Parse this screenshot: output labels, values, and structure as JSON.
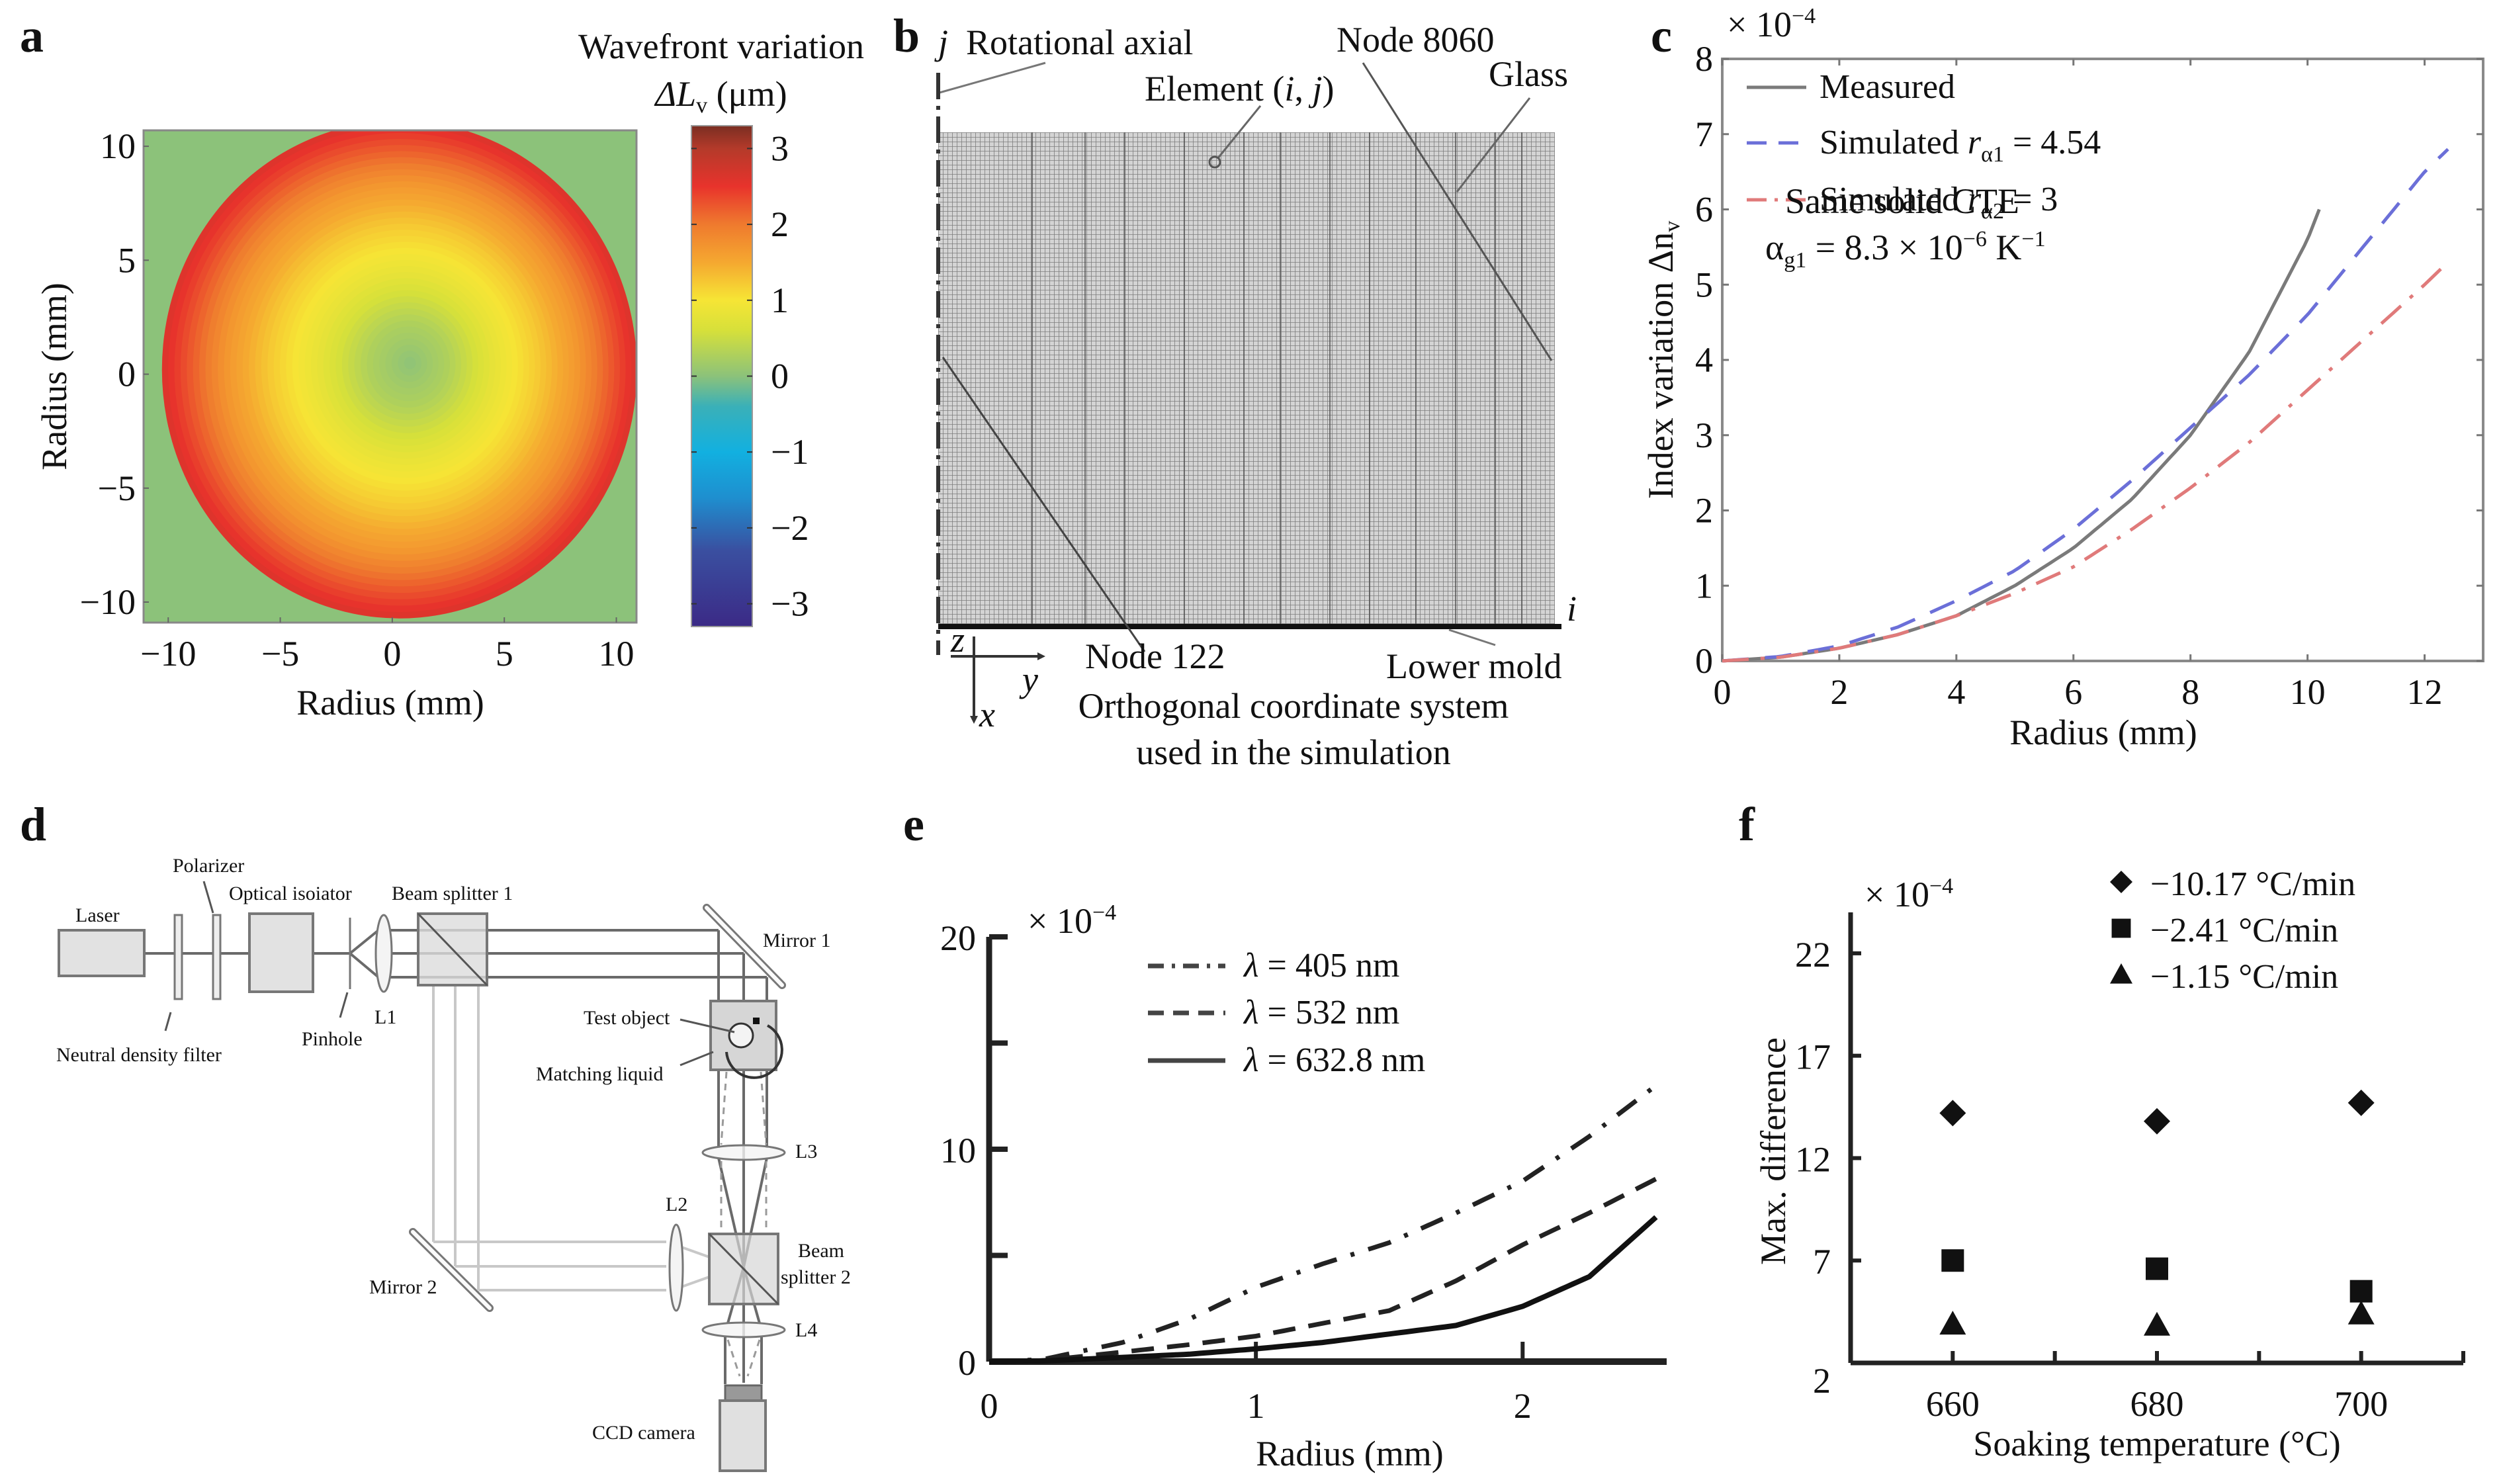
{
  "figure": {
    "panels": {
      "a": {
        "letter": "a",
        "colorbar_title_line1": "Wavefront variation",
        "colorbar_title_symbol": "ΔL",
        "colorbar_title_sub": "v",
        "colorbar_title_unit": " (μm)"
      },
      "b": {
        "letter": "b",
        "j_label": "j",
        "rotational_axial": "Rotational axial",
        "element_label": "Element (",
        "element_i": "i",
        "element_comma": ", ",
        "element_j": "j",
        "element_close": ")",
        "node_8060": "Node 8060",
        "glass": "Glass",
        "i_label": "i",
        "node_122": "Node 122",
        "lower_mold": "Lower mold",
        "coord_z": "z",
        "coord_y": "y",
        "coord_x": "x",
        "caption_line1": "Orthogonal coordinate system",
        "caption_line2": "used in the simulation"
      },
      "c": {
        "letter": "c",
        "multiplier_prefix": "× 10",
        "multiplier_exp": "−4",
        "annotation_line1": "Same solid CTE",
        "annotation_alpha": "α",
        "annotation_alpha_sub": "g1",
        "annotation_eq": " = 8.3 × 10",
        "annotation_exp": "−6",
        "annotation_unit": " K",
        "annotation_unit_exp": "−1"
      },
      "d": {
        "letter": "d",
        "labels": {
          "laser": "Laser",
          "polarizer": "Polarizer",
          "optical_isolator": "Optical isoiator",
          "beam_splitter_1": "Beam splitter 1",
          "mirror_1": "Mirror 1",
          "neutral_density_filter": "Neutral density filter",
          "pinhole": "Pinhole",
          "l1": "L1",
          "test_object": "Test object",
          "matching_liquid": "Matching liquid",
          "l3": "L3",
          "l2": "L2",
          "beam_splitter_2_line1": "Beam",
          "beam_splitter_2_line2": "splitter 2",
          "mirror_2": "Mirror 2",
          "l4": "L4",
          "ccd_camera": "CCD camera"
        }
      },
      "e": {
        "letter": "e",
        "multiplier_prefix": "× 10",
        "multiplier_exp": "−4"
      },
      "f": {
        "letter": "f",
        "multiplier_prefix": "× 10",
        "multiplier_exp": "−4"
      }
    }
  },
  "chart_data": [
    {
      "id": "a",
      "type": "heatmap",
      "title": "",
      "xlabel": "Radius (mm)",
      "ylabel": "Radius (mm)",
      "xlim": [
        -11.1,
        10.9
      ],
      "ylim": [
        -10.9,
        10.7
      ],
      "xticks": [
        -10,
        -5,
        0,
        5,
        10
      ],
      "xtick_labels": [
        "−10",
        "−5",
        "0",
        "5",
        "10"
      ],
      "yticks": [
        -10,
        -5,
        0,
        5,
        10
      ],
      "ytick_labels": [
        "−10",
        "−5",
        "0",
        "5",
        "10"
      ],
      "aperture_radius_mm": 10.6,
      "center_mm": [
        0.8,
        0.5
      ],
      "background_value": 0,
      "radial_profile": {
        "r_mm": [
          0,
          2,
          4,
          6,
          8,
          10,
          10.6
        ],
        "value_um": [
          0.0,
          0.3,
          0.8,
          1.2,
          1.7,
          2.4,
          2.6
        ]
      },
      "colorbar": {
        "label": "Wavefront variation ΔLv (μm)",
        "range": [
          -3.3,
          3.3
        ],
        "ticks": [
          3,
          2,
          1,
          0,
          -1,
          -2,
          -3
        ],
        "tick_labels": [
          "3",
          "2",
          "1",
          "0",
          "−1",
          "−2",
          "−3"
        ],
        "colormap_stops": [
          {
            "v": -3.3,
            "color": "#3b2a86"
          },
          {
            "v": -2.3,
            "color": "#3a4fa0"
          },
          {
            "v": -1.6,
            "color": "#1e8fcf"
          },
          {
            "v": -1.0,
            "color": "#12b0e0"
          },
          {
            "v": -0.4,
            "color": "#3ab0b8"
          },
          {
            "v": 0.0,
            "color": "#8cc27a"
          },
          {
            "v": 0.6,
            "color": "#d6e03a"
          },
          {
            "v": 1.0,
            "color": "#f6e535"
          },
          {
            "v": 1.5,
            "color": "#f5a830"
          },
          {
            "v": 2.0,
            "color": "#ef7a2e"
          },
          {
            "v": 2.5,
            "color": "#e8332c"
          },
          {
            "v": 3.0,
            "color": "#b43a2a"
          },
          {
            "v": 3.3,
            "color": "#7a2e22"
          }
        ]
      }
    },
    {
      "id": "b",
      "type": "diagram",
      "description": "Finite element mesh of glass on lower mold"
    },
    {
      "id": "c",
      "type": "line",
      "title": "",
      "xlabel": "Radius (mm)",
      "ylabel": "Index variation Δn",
      "ylabel_sub": "v",
      "multiplier": "× 10^−4",
      "xlim": [
        0,
        13
      ],
      "ylim": [
        0,
        8
      ],
      "xticks": [
        0,
        2,
        4,
        6,
        8,
        10,
        12
      ],
      "yticks": [
        0,
        1,
        2,
        3,
        4,
        5,
        6,
        7,
        8
      ],
      "grid": false,
      "legend_position": "top-left",
      "series": [
        {
          "name": "Measured",
          "name_parts": [
            "Measured"
          ],
          "color": "#7a7a7a",
          "style": "solid",
          "x": [
            0,
            1,
            2,
            3,
            4,
            5,
            6,
            7,
            8,
            9,
            10,
            10.2
          ],
          "y": [
            0,
            0.05,
            0.17,
            0.35,
            0.6,
            1.0,
            1.5,
            2.15,
            3.0,
            4.1,
            5.6,
            6.0
          ]
        },
        {
          "name": "Simulated rα1 = 4.54",
          "name_parts": [
            "Simulated ",
            "r",
            "α1",
            " = 4.54"
          ],
          "color": "#6b6fd8",
          "style": "dashed",
          "x": [
            0,
            1,
            2,
            3,
            4,
            5,
            6,
            7,
            8,
            9,
            10,
            11,
            12,
            12.4
          ],
          "y": [
            0,
            0.06,
            0.2,
            0.45,
            0.8,
            1.2,
            1.75,
            2.4,
            3.1,
            3.8,
            4.6,
            5.55,
            6.5,
            6.8
          ]
        },
        {
          "name": "Simulated rα2 = 3",
          "name_parts": [
            "Simulated ",
            "r",
            "α2",
            " = 3"
          ],
          "color": "#e07a7a",
          "style": "dashdot",
          "x": [
            0,
            1,
            2,
            3,
            4,
            5,
            6,
            7,
            8,
            9,
            10,
            11,
            12,
            12.4
          ],
          "y": [
            0,
            0.05,
            0.17,
            0.35,
            0.6,
            0.9,
            1.25,
            1.75,
            2.3,
            2.9,
            3.6,
            4.3,
            5.0,
            5.3
          ]
        }
      ]
    },
    {
      "id": "d",
      "type": "diagram",
      "description": "Optical setup schematic"
    },
    {
      "id": "e",
      "type": "line",
      "title": "",
      "xlabel": "Radius (mm)",
      "ylabel": "",
      "multiplier": "× 10^−4",
      "xlim": [
        0,
        2.54
      ],
      "ylim": [
        0,
        20
      ],
      "xticks": [
        0,
        1,
        2
      ],
      "yticks": [
        0,
        10,
        20
      ],
      "ytick_labels": [
        "0",
        "10",
        "20"
      ],
      "minor_yticks": [
        5,
        15
      ],
      "grid": false,
      "legend_position": "top-center",
      "series": [
        {
          "name": "λ = 405 nm",
          "name_parts": [
            "λ",
            " = 405 nm"
          ],
          "color": "#222222",
          "style": "dashdot",
          "x": [
            0,
            0.2,
            0.5,
            0.75,
            1.0,
            1.25,
            1.5,
            1.75,
            2.0,
            2.25,
            2.5
          ],
          "y": [
            0,
            0.1,
            0.9,
            2.0,
            3.5,
            4.6,
            5.6,
            7.0,
            8.5,
            10.6,
            13.0
          ]
        },
        {
          "name": "λ = 532 nm",
          "name_parts": [
            "λ",
            " = 532 nm"
          ],
          "color": "#222222",
          "style": "dashed",
          "x": [
            0,
            0.2,
            0.5,
            0.75,
            1.0,
            1.25,
            1.5,
            1.75,
            2.0,
            2.25,
            2.5
          ],
          "y": [
            0,
            0.05,
            0.45,
            0.8,
            1.2,
            1.8,
            2.4,
            3.8,
            5.5,
            7.0,
            8.6
          ]
        },
        {
          "name": "λ = 632.8 nm",
          "name_parts": [
            "λ",
            " = 632.8 nm"
          ],
          "color": "#111111",
          "style": "solid",
          "x": [
            0,
            0.2,
            0.5,
            0.75,
            1.0,
            1.25,
            1.5,
            1.75,
            2.0,
            2.25,
            2.5
          ],
          "y": [
            0,
            0.03,
            0.2,
            0.35,
            0.6,
            0.9,
            1.3,
            1.7,
            2.6,
            4.0,
            6.8
          ]
        }
      ]
    },
    {
      "id": "f",
      "type": "scatter",
      "title": "",
      "xlabel": "Soaking temperature (°C)",
      "ylabel": "Max. difference",
      "multiplier": "× 10^−4",
      "xlim": [
        650,
        710
      ],
      "ylim": [
        2,
        24
      ],
      "xticks": [
        660,
        680,
        700
      ],
      "minor_xticks": [
        670,
        690,
        710
      ],
      "yticks": [
        2,
        7,
        12,
        17,
        22
      ],
      "grid": false,
      "legend_position": "top-right",
      "series": [
        {
          "name": "−10.17 °C/min",
          "marker": "diamond",
          "color": "#111111",
          "x": [
            660,
            680,
            700
          ],
          "y": [
            14.2,
            13.8,
            14.7
          ]
        },
        {
          "name": "−2.41 °C/min",
          "marker": "square",
          "color": "#111111",
          "x": [
            660,
            680,
            700
          ],
          "y": [
            7.0,
            6.6,
            5.5
          ]
        },
        {
          "name": "−1.15 °C/min",
          "marker": "triangle",
          "color": "#111111",
          "x": [
            660,
            680,
            700
          ],
          "y": [
            3.9,
            3.85,
            4.4
          ]
        }
      ]
    }
  ]
}
